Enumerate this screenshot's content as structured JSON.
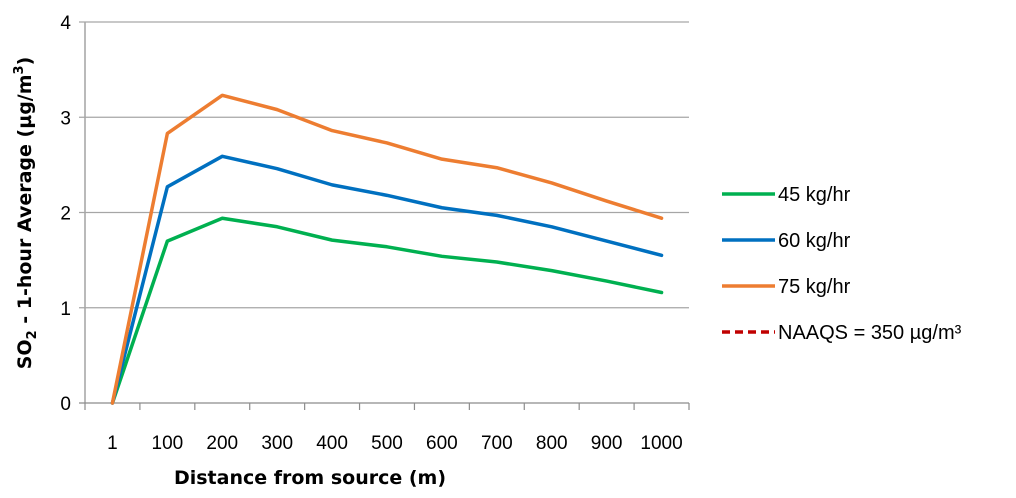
{
  "chart_data": {
    "type": "line",
    "categories": [
      "1",
      "100",
      "200",
      "300",
      "400",
      "500",
      "600",
      "700",
      "800",
      "900",
      "1000"
    ],
    "xlabel": "Distance from source (m)",
    "ylabel": {
      "prefix": "SO",
      "sub": "2",
      "middle": " - 1-hour Average (µg/m",
      "sup": "3",
      "suffix": ")"
    },
    "ylim": [
      0,
      4
    ],
    "yticks": [
      0,
      1,
      2,
      3,
      4
    ],
    "grid": "horizontal",
    "legend_position": "right",
    "series": [
      {
        "name": "45 kg/hr",
        "color": "#00B050",
        "dash": "solid",
        "points": [
          [
            1,
            0
          ],
          [
            100,
            1.7
          ],
          [
            200,
            1.94
          ],
          [
            300,
            1.85
          ],
          [
            400,
            1.71
          ],
          [
            500,
            1.64
          ],
          [
            600,
            1.54
          ],
          [
            700,
            1.48
          ],
          [
            800,
            1.39
          ],
          [
            900,
            1.28
          ],
          [
            1000,
            1.16
          ]
        ]
      },
      {
        "name": "60 kg/hr",
        "color": "#0070C0",
        "dash": "solid",
        "points": [
          [
            1,
            0
          ],
          [
            100,
            2.27
          ],
          [
            200,
            2.59
          ],
          [
            300,
            2.46
          ],
          [
            400,
            2.29
          ],
          [
            500,
            2.18
          ],
          [
            600,
            2.05
          ],
          [
            700,
            1.97
          ],
          [
            800,
            1.85
          ],
          [
            900,
            1.7
          ],
          [
            1000,
            1.55
          ]
        ]
      },
      {
        "name": "75 kg/hr",
        "color": "#ED7D31",
        "dash": "solid",
        "points": [
          [
            1,
            0
          ],
          [
            100,
            2.83
          ],
          [
            200,
            3.23
          ],
          [
            300,
            3.08
          ],
          [
            400,
            2.86
          ],
          [
            500,
            2.73
          ],
          [
            600,
            2.56
          ],
          [
            700,
            2.47
          ],
          [
            800,
            2.31
          ],
          [
            900,
            2.12
          ],
          [
            1000,
            1.94
          ]
        ]
      },
      {
        "name": "NAAQS = 350 µg/m³",
        "color": "#C00000",
        "dash": "dashed",
        "points": []
      }
    ]
  }
}
